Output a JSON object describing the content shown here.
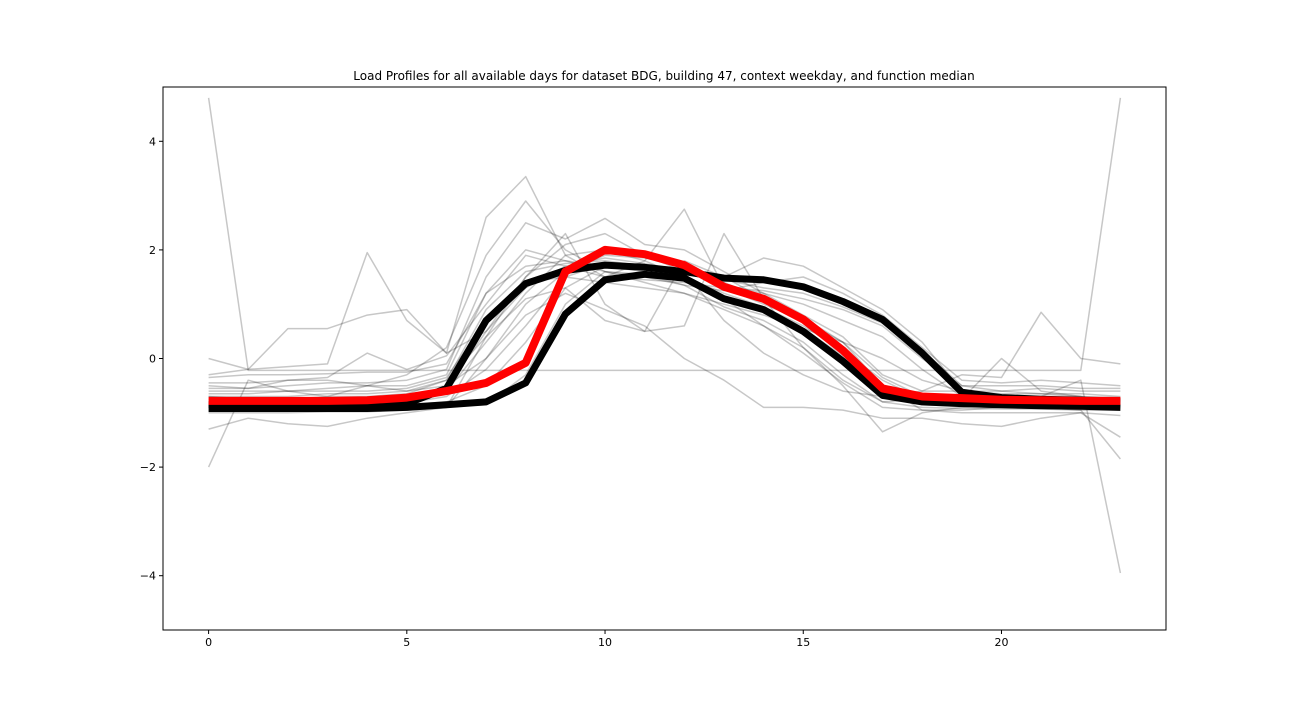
{
  "chart_data": {
    "type": "line",
    "title": "Load Profiles for all available days for dataset BDG, building 47, context weekday, and function median",
    "xlabel": "",
    "ylabel": "",
    "xlim": [
      -1.15,
      24.15
    ],
    "ylim": [
      -5,
      5
    ],
    "x_ticks": [
      0,
      5,
      10,
      15,
      20
    ],
    "y_ticks": [
      4,
      2,
      0,
      -2,
      -4
    ],
    "x_tick_labels": [
      "0",
      "5",
      "10",
      "15",
      "20"
    ],
    "y_tick_labels": [
      "4",
      "2",
      "0",
      "−2",
      "−4"
    ],
    "grid": false,
    "legend": "none",
    "colors": {
      "median": "#ff0000",
      "bold_profiles": "#000000",
      "day_profiles": "#000000"
    },
    "x": [
      0,
      1,
      2,
      3,
      4,
      5,
      6,
      7,
      8,
      9,
      10,
      11,
      12,
      13,
      14,
      15,
      16,
      17,
      18,
      19,
      20,
      21,
      22,
      23
    ],
    "series": [
      {
        "role": "median",
        "values": [
          -0.78,
          -0.78,
          -0.78,
          -0.78,
          -0.77,
          -0.72,
          -0.6,
          -0.45,
          -0.08,
          1.6,
          2.0,
          1.92,
          1.72,
          1.32,
          1.1,
          0.72,
          0.15,
          -0.55,
          -0.7,
          -0.73,
          -0.76,
          -0.77,
          -0.78,
          -0.78
        ]
      },
      {
        "role": "bold-profile",
        "values": [
          -0.85,
          -0.85,
          -0.85,
          -0.85,
          -0.85,
          -0.83,
          -0.55,
          0.7,
          1.38,
          1.62,
          1.72,
          1.68,
          1.6,
          1.48,
          1.45,
          1.32,
          1.05,
          0.72,
          0.1,
          -0.62,
          -0.72,
          -0.75,
          -0.77,
          -0.8
        ]
      },
      {
        "role": "bold-profile",
        "values": [
          -0.92,
          -0.92,
          -0.92,
          -0.92,
          -0.92,
          -0.9,
          -0.85,
          -0.8,
          -0.45,
          0.82,
          1.45,
          1.55,
          1.48,
          1.1,
          0.9,
          0.5,
          -0.05,
          -0.68,
          -0.8,
          -0.83,
          -0.85,
          -0.87,
          -0.88,
          -0.9
        ]
      },
      {
        "role": "day-profile",
        "values": [
          4.8,
          -0.22,
          -0.22,
          -0.22,
          -0.22,
          -0.22,
          -0.22,
          -0.22,
          -0.22,
          -0.22,
          -0.22,
          -0.22,
          -0.22,
          -0.22,
          -0.22,
          -0.22,
          -0.22,
          -0.22,
          -0.22,
          -0.22,
          -0.22,
          -0.22,
          -0.22,
          4.8
        ]
      },
      {
        "role": "day-profile",
        "values": [
          0.0,
          -0.2,
          -0.15,
          -0.1,
          1.95,
          0.7,
          0.1,
          2.6,
          3.35,
          1.9,
          1.5,
          1.8,
          2.75,
          1.3,
          1.0,
          0.7,
          0.3,
          -0.5,
          -0.7,
          -0.8,
          -0.85,
          -0.9,
          -0.95,
          -1.85
        ]
      },
      {
        "role": "day-profile",
        "values": [
          -2.0,
          -0.4,
          -0.6,
          -0.7,
          -0.5,
          -0.6,
          -0.4,
          0.4,
          1.5,
          2.3,
          1.0,
          0.5,
          0.6,
          2.3,
          1.1,
          0.2,
          -0.5,
          -1.35,
          -1.0,
          -0.9,
          -0.85,
          -0.7,
          -0.4,
          -3.95
        ]
      },
      {
        "role": "day-profile",
        "values": [
          -0.3,
          -0.2,
          0.55,
          0.55,
          0.8,
          0.9,
          0.1,
          0.5,
          1.5,
          2.1,
          2.3,
          1.9,
          1.6,
          0.7,
          0.1,
          -0.3,
          -0.6,
          -0.7,
          -0.6,
          -0.3,
          -0.35,
          0.85,
          0.0,
          -0.1
        ]
      },
      {
        "role": "day-profile",
        "values": [
          -1.3,
          -1.1,
          -1.2,
          -1.25,
          -1.1,
          -1.0,
          -0.9,
          0.0,
          0.8,
          1.2,
          0.9,
          0.6,
          0.0,
          -0.4,
          -0.9,
          -0.9,
          -0.95,
          -1.1,
          -1.1,
          -1.2,
          -1.25,
          -1.1,
          -1.0,
          -1.45
        ]
      },
      {
        "role": "day-profile",
        "values": [
          -0.5,
          -0.55,
          -0.4,
          -0.4,
          -0.5,
          -0.3,
          0.2,
          1.9,
          2.9,
          2.0,
          1.6,
          1.4,
          1.2,
          0.9,
          0.6,
          0.2,
          -0.4,
          -0.8,
          -0.75,
          -0.75,
          0.0,
          -0.6,
          -0.7,
          -0.9
        ]
      },
      {
        "role": "day-profile",
        "values": [
          -0.6,
          -0.6,
          -0.6,
          -0.55,
          -0.5,
          -0.5,
          -0.3,
          1.2,
          1.7,
          1.8,
          1.7,
          1.65,
          1.6,
          1.5,
          1.85,
          1.7,
          1.3,
          0.9,
          0.3,
          -0.6,
          -0.7,
          -0.7,
          -0.7,
          -0.75
        ]
      },
      {
        "role": "day-profile",
        "values": [
          -0.7,
          -0.75,
          -0.75,
          -0.7,
          -0.7,
          -0.65,
          -0.4,
          0.9,
          1.6,
          1.75,
          1.8,
          1.7,
          1.6,
          1.45,
          1.3,
          1.2,
          0.95,
          0.65,
          0.15,
          -0.5,
          -0.6,
          -0.65,
          -0.7,
          -0.72
        ]
      },
      {
        "role": "day-profile",
        "values": [
          -0.95,
          -0.95,
          -0.95,
          -0.95,
          -0.95,
          -0.9,
          -0.88,
          -0.85,
          -0.3,
          1.0,
          1.6,
          1.55,
          1.35,
          0.95,
          0.7,
          0.3,
          -0.3,
          -0.8,
          -0.9,
          -0.92,
          -0.93,
          -0.93,
          -0.95,
          -0.95
        ]
      },
      {
        "role": "day-profile",
        "values": [
          -0.8,
          -0.82,
          -0.82,
          -0.8,
          -0.8,
          -0.75,
          -0.6,
          0.3,
          1.2,
          1.9,
          2.0,
          1.8,
          1.5,
          1.1,
          0.6,
          0.1,
          -0.45,
          -0.9,
          -0.95,
          -0.95,
          -0.9,
          -0.9,
          -0.9,
          -0.88
        ]
      },
      {
        "role": "day-profile",
        "values": [
          -0.65,
          -0.65,
          -0.6,
          -0.6,
          -0.6,
          -0.55,
          -0.35,
          0.7,
          1.4,
          1.5,
          1.4,
          1.3,
          1.2,
          1.0,
          0.8,
          0.55,
          0.3,
          0.0,
          -0.4,
          -0.6,
          -0.65,
          -0.65,
          -0.65,
          -0.7
        ]
      },
      {
        "role": "day-profile",
        "values": [
          -0.55,
          -0.55,
          -0.5,
          -0.45,
          -0.45,
          -0.4,
          -0.2,
          1.5,
          2.5,
          2.2,
          2.58,
          2.1,
          2.0,
          1.6,
          1.2,
          0.8,
          0.4,
          -0.3,
          -0.6,
          -0.6,
          -0.6,
          -0.55,
          -0.6,
          -0.6
        ]
      },
      {
        "role": "day-profile",
        "values": [
          -0.85,
          -0.85,
          -0.85,
          -0.85,
          -0.85,
          -0.82,
          -0.7,
          -0.2,
          0.6,
          1.5,
          1.75,
          1.65,
          1.5,
          1.2,
          0.95,
          0.6,
          0.15,
          -0.4,
          -0.75,
          -0.8,
          -0.82,
          -0.83,
          -0.83,
          -0.85
        ]
      },
      {
        "role": "day-profile",
        "values": [
          -1.0,
          -1.0,
          -1.0,
          -0.98,
          -0.98,
          -0.95,
          -0.9,
          0.4,
          1.1,
          1.3,
          0.7,
          0.5,
          1.8,
          1.5,
          1.1,
          0.7,
          0.2,
          -0.5,
          -0.95,
          -1.0,
          -1.0,
          -1.0,
          -1.0,
          -1.05
        ]
      },
      {
        "role": "day-profile",
        "values": [
          -0.45,
          -0.45,
          -0.4,
          -0.35,
          0.1,
          -0.2,
          0.05,
          1.0,
          1.9,
          1.7,
          1.5,
          1.45,
          1.4,
          1.3,
          1.25,
          1.1,
          0.9,
          0.6,
          0.0,
          -0.5,
          -0.5,
          -0.5,
          -0.55,
          -0.55
        ]
      },
      {
        "role": "day-profile",
        "values": [
          -0.75,
          -0.78,
          -0.8,
          -0.78,
          -0.78,
          -0.74,
          -0.55,
          0.5,
          1.3,
          1.7,
          1.85,
          1.75,
          1.6,
          1.35,
          1.2,
          1.0,
          0.7,
          0.4,
          -0.2,
          -0.7,
          -0.72,
          -0.75,
          -0.76,
          -0.78
        ]
      },
      {
        "role": "day-profile",
        "values": [
          -0.9,
          -0.9,
          -0.88,
          -0.88,
          -0.87,
          -0.85,
          -0.8,
          -0.5,
          0.3,
          1.3,
          1.7,
          1.6,
          1.45,
          1.15,
          0.9,
          0.55,
          0.05,
          -0.6,
          -0.85,
          -0.88,
          -0.9,
          -0.9,
          -0.9,
          -0.92
        ]
      },
      {
        "role": "day-profile",
        "values": [
          -0.35,
          -0.3,
          -0.3,
          -0.28,
          -0.25,
          -0.25,
          -0.1,
          1.2,
          2.0,
          1.8,
          1.6,
          1.5,
          1.35,
          1.25,
          1.4,
          1.5,
          1.2,
          0.8,
          0.2,
          -0.4,
          -0.45,
          -0.4,
          -0.45,
          -0.5
        ]
      },
      {
        "role": "day-profile",
        "values": [
          -0.7,
          -0.7,
          -0.7,
          -0.65,
          -0.65,
          -0.6,
          -0.5,
          0.0,
          1.0,
          1.6,
          1.9,
          1.85,
          1.7,
          1.4,
          1.1,
          0.75,
          0.3,
          -0.35,
          -0.7,
          -0.72,
          -0.72,
          -0.74,
          -0.74,
          -0.76
        ]
      }
    ]
  }
}
